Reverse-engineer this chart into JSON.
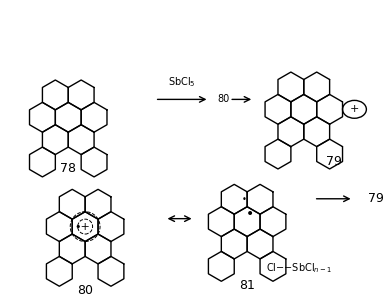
{
  "title": "",
  "background": "#ffffff",
  "label_78": "78",
  "label_79": "79",
  "label_80": "80",
  "label_81": "81",
  "arrow1_label": "SbCl₅",
  "arrow2_label": "80",
  "arrow3_label": "↔",
  "arrow4_label": "79",
  "bottom_label": "Cl——SbClₙ₋₁",
  "cl_label": "Cl",
  "sbcl_label": "SbClₙ₋₁",
  "font_size_labels": 9,
  "font_size_numbers": 9,
  "line_width": 1.0,
  "hex_lw": 0.8
}
